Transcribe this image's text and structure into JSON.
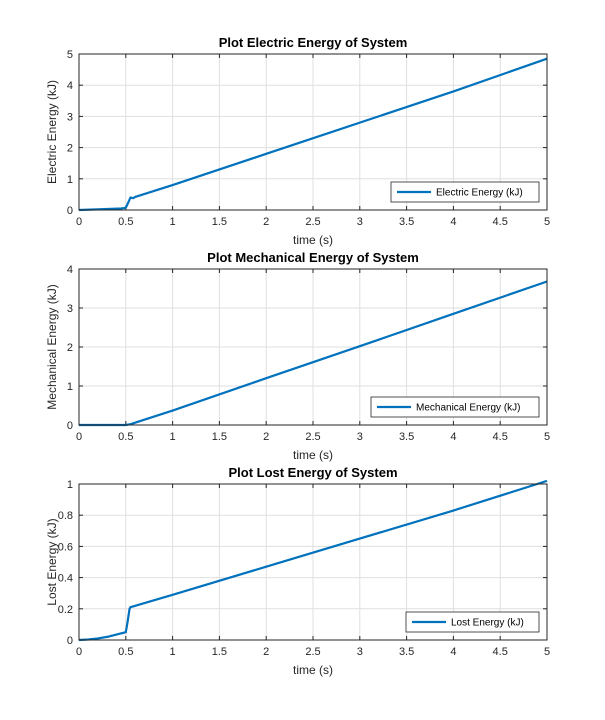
{
  "chart_data": [
    {
      "type": "line",
      "title": "Plot Electric Energy of System",
      "xlabel": "time (s)",
      "ylabel": "Electric Energy (kJ)",
      "xlim": [
        0,
        5
      ],
      "ylim": [
        0,
        5
      ],
      "xticks": [
        0,
        0.5,
        1,
        1.5,
        2,
        2.5,
        3,
        3.5,
        4,
        4.5,
        5
      ],
      "yticks": [
        0,
        1,
        2,
        3,
        4,
        5
      ],
      "xtick_labels": [
        "0",
        "0.5",
        "1",
        "1.5",
        "2",
        "2.5",
        "3",
        "3.5",
        "4",
        "4.5",
        "5"
      ],
      "ytick_labels": [
        "0",
        "1",
        "2",
        "3",
        "4",
        "5"
      ],
      "grid": true,
      "legend_position": "bottom-right",
      "series": [
        {
          "name": "Electric Energy (kJ)",
          "color": "#0072BD",
          "x": [
            0,
            0.2,
            0.45,
            0.5,
            0.52,
            0.55,
            0.58,
            0.6,
            1,
            2,
            3,
            4,
            5
          ],
          "y": [
            0,
            0.02,
            0.05,
            0.07,
            0.2,
            0.4,
            0.38,
            0.42,
            0.8,
            1.8,
            2.8,
            3.8,
            4.85
          ]
        }
      ]
    },
    {
      "type": "line",
      "title": "Plot Mechanical Energy of System",
      "xlabel": "time (s)",
      "ylabel": "Mechanical Energy (kJ)",
      "xlim": [
        0,
        5
      ],
      "ylim": [
        0,
        4
      ],
      "xticks": [
        0,
        0.5,
        1,
        1.5,
        2,
        2.5,
        3,
        3.5,
        4,
        4.5,
        5
      ],
      "yticks": [
        0,
        1,
        2,
        3,
        4
      ],
      "xtick_labels": [
        "0",
        "0.5",
        "1",
        "1.5",
        "2",
        "2.5",
        "3",
        "3.5",
        "4",
        "4.5",
        "5"
      ],
      "ytick_labels": [
        "0",
        "1",
        "2",
        "3",
        "4"
      ],
      "grid": true,
      "legend_position": "bottom-right",
      "series": [
        {
          "name": "Mechanical Energy (kJ)",
          "color": "#0072BD",
          "x": [
            0,
            0.5,
            0.55,
            1,
            2,
            3,
            4,
            5
          ],
          "y": [
            0,
            0,
            0.02,
            0.37,
            1.2,
            2.02,
            2.85,
            3.68
          ]
        }
      ]
    },
    {
      "type": "line",
      "title": "Plot Lost Energy of System",
      "xlabel": "time (s)",
      "ylabel": "Lost Energy (kJ)",
      "xlim": [
        0,
        5
      ],
      "ylim": [
        0,
        1
      ],
      "xticks": [
        0,
        0.5,
        1,
        1.5,
        2,
        2.5,
        3,
        3.5,
        4,
        4.5,
        5
      ],
      "yticks": [
        0,
        0.2,
        0.4,
        0.6,
        0.8,
        1
      ],
      "xtick_labels": [
        "0",
        "0.5",
        "1",
        "1.5",
        "2",
        "2.5",
        "3",
        "3.5",
        "4",
        "4.5",
        "5"
      ],
      "ytick_labels": [
        "0",
        "0.2",
        "0.4",
        "0.6",
        "0.8",
        "1"
      ],
      "grid": true,
      "legend_position": "bottom-right",
      "series": [
        {
          "name": "Lost Energy (kJ)",
          "color": "#0072BD",
          "x": [
            0,
            0.1,
            0.2,
            0.3,
            0.4,
            0.5,
            0.52,
            0.54,
            0.55,
            1,
            2,
            3,
            4,
            5
          ],
          "y": [
            0,
            0.003,
            0.01,
            0.02,
            0.035,
            0.05,
            0.12,
            0.2,
            0.21,
            0.29,
            0.47,
            0.65,
            0.83,
            1.02
          ]
        }
      ]
    }
  ]
}
